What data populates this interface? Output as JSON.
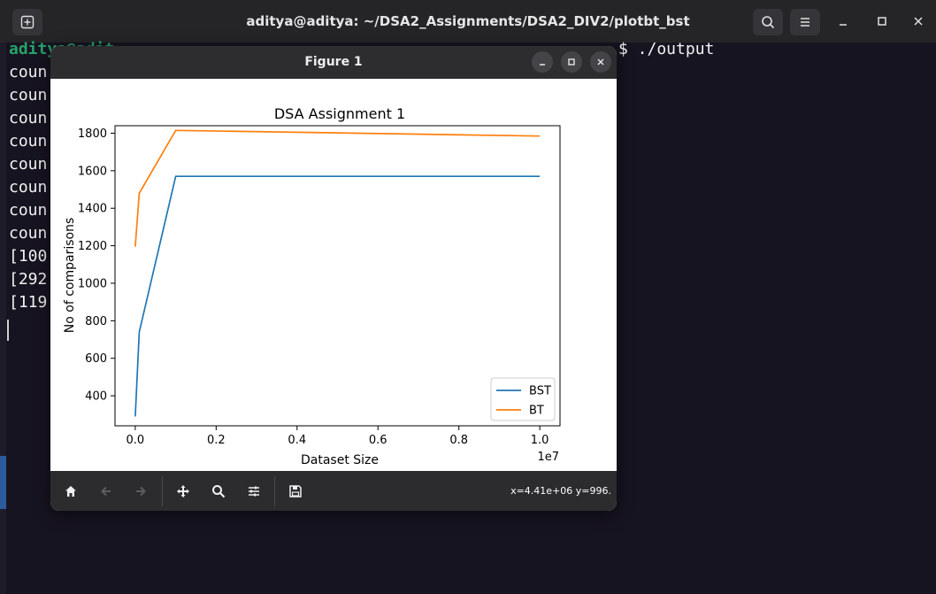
{
  "terminal": {
    "title": "aditya@aditya: ~/DSA2_Assignments/DSA2_DIV2/plotbt_bst",
    "prompt_user": "aditya@adit",
    "prompt_tail": "$ ./output",
    "lines": [
      "coun",
      "coun",
      "coun",
      "coun",
      "coun",
      "coun",
      "coun",
      "coun",
      "[100",
      "[292",
      "[119"
    ]
  },
  "figure": {
    "window_title": "Figure 1",
    "coords": "x=4.41e+06 y=996."
  },
  "chart_data": {
    "type": "line",
    "title": "DSA Assignment 1",
    "xlabel": "Dataset Size",
    "ylabel": "No of comparisons",
    "x_scale_label": "1e7",
    "xlim": [
      -0.05,
      1.05
    ],
    "ylim": [
      240,
      1840
    ],
    "x_ticks": [
      0.0,
      0.2,
      0.4,
      0.6,
      0.8,
      1.0
    ],
    "x_tick_labels": [
      "0.0",
      "0.2",
      "0.4",
      "0.6",
      "0.8",
      "1.0"
    ],
    "y_ticks": [
      400,
      600,
      800,
      1000,
      1200,
      1400,
      1600,
      1800
    ],
    "y_tick_labels": [
      "400",
      "600",
      "800",
      "1000",
      "1200",
      "1400",
      "1600",
      "1800"
    ],
    "legend_position": "lower-right",
    "series": [
      {
        "name": "BST",
        "color": "#1f77b4",
        "x": [
          0.0,
          0.01,
          0.1,
          1.0
        ],
        "y": [
          290,
          740,
          1570,
          1570
        ]
      },
      {
        "name": "BT",
        "color": "#ff7f0e",
        "x": [
          0.0,
          0.01,
          0.1,
          1.0
        ],
        "y": [
          1195,
          1480,
          1815,
          1785
        ]
      }
    ]
  },
  "colors": {
    "terminal_bg": "#171421",
    "header_bg": "#252528",
    "prompt_green": "#26a269",
    "figure_titlebar": "#2d2d30",
    "toolbar": "#2c2c2f"
  }
}
